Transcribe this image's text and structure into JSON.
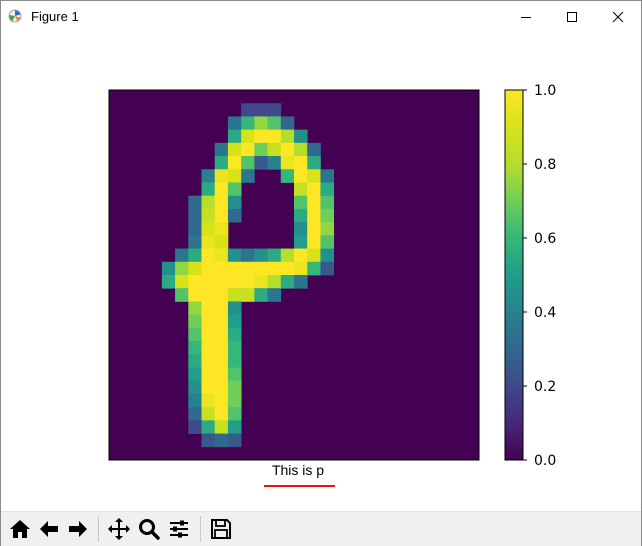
{
  "window": {
    "title": "Figure 1",
    "controls": [
      "minimize-icon",
      "maximize-icon",
      "close-icon"
    ]
  },
  "figure": {
    "caption": "This is p",
    "caption_underline_color": "#ee1111",
    "colormap": "viridis",
    "colorbar_ticks": [
      "0.0",
      "0.2",
      "0.4",
      "0.6",
      "0.8",
      "1.0"
    ],
    "colorbar_range": [
      0.0,
      1.0
    ]
  },
  "toolbar": {
    "buttons": [
      {
        "name": "home-icon"
      },
      {
        "name": "back-icon"
      },
      {
        "name": "forward-icon"
      },
      {
        "name": "pan-icon"
      },
      {
        "name": "zoom-icon"
      },
      {
        "name": "configure-subplots-icon"
      },
      {
        "name": "save-icon"
      }
    ]
  },
  "chart_data": {
    "type": "heatmap",
    "rows": 28,
    "cols": 28,
    "value_range": [
      0,
      1
    ],
    "sparse_cells": [
      [
        1,
        10,
        0.2
      ],
      [
        1,
        11,
        0.2
      ],
      [
        1,
        12,
        0.2
      ],
      [
        2,
        9,
        0.35
      ],
      [
        2,
        10,
        0.6
      ],
      [
        2,
        11,
        0.75
      ],
      [
        2,
        12,
        0.65
      ],
      [
        2,
        13,
        0.3
      ],
      [
        3,
        9,
        0.55
      ],
      [
        3,
        10,
        0.9
      ],
      [
        3,
        11,
        1
      ],
      [
        3,
        12,
        1
      ],
      [
        3,
        13,
        0.8
      ],
      [
        3,
        14,
        0.45
      ],
      [
        4,
        8,
        0.35
      ],
      [
        4,
        9,
        0.9
      ],
      [
        4,
        10,
        1
      ],
      [
        4,
        11,
        0.7
      ],
      [
        4,
        12,
        0.85
      ],
      [
        4,
        13,
        1
      ],
      [
        4,
        14,
        0.8
      ],
      [
        4,
        15,
        0.3
      ],
      [
        5,
        8,
        0.55
      ],
      [
        5,
        9,
        1
      ],
      [
        5,
        10,
        0.65
      ],
      [
        5,
        11,
        0.25
      ],
      [
        5,
        12,
        0.4
      ],
      [
        5,
        13,
        0.95
      ],
      [
        5,
        14,
        1
      ],
      [
        5,
        15,
        0.55
      ],
      [
        6,
        7,
        0.4
      ],
      [
        6,
        8,
        0.95
      ],
      [
        6,
        9,
        0.9
      ],
      [
        6,
        10,
        0.35
      ],
      [
        6,
        13,
        0.6
      ],
      [
        6,
        14,
        1
      ],
      [
        6,
        15,
        0.9
      ],
      [
        6,
        16,
        0.35
      ],
      [
        7,
        7,
        0.55
      ],
      [
        7,
        8,
        1
      ],
      [
        7,
        9,
        0.65
      ],
      [
        7,
        14,
        0.85
      ],
      [
        7,
        15,
        1
      ],
      [
        7,
        16,
        0.55
      ],
      [
        8,
        6,
        0.3
      ],
      [
        8,
        7,
        0.8
      ],
      [
        8,
        8,
        1
      ],
      [
        8,
        9,
        0.45
      ],
      [
        8,
        14,
        0.65
      ],
      [
        8,
        15,
        1
      ],
      [
        8,
        16,
        0.65
      ],
      [
        9,
        6,
        0.3
      ],
      [
        9,
        7,
        0.85
      ],
      [
        9,
        8,
        1
      ],
      [
        9,
        9,
        0.3
      ],
      [
        9,
        14,
        0.55
      ],
      [
        9,
        15,
        1
      ],
      [
        9,
        16,
        0.7
      ],
      [
        10,
        6,
        0.3
      ],
      [
        10,
        7,
        0.9
      ],
      [
        10,
        8,
        0.95
      ],
      [
        10,
        14,
        0.45
      ],
      [
        10,
        15,
        1
      ],
      [
        10,
        16,
        0.75
      ],
      [
        11,
        6,
        0.35
      ],
      [
        11,
        7,
        0.95
      ],
      [
        11,
        8,
        0.9
      ],
      [
        11,
        14,
        0.5
      ],
      [
        11,
        15,
        1
      ],
      [
        11,
        16,
        0.65
      ],
      [
        12,
        5,
        0.35
      ],
      [
        12,
        6,
        0.55
      ],
      [
        12,
        7,
        1
      ],
      [
        12,
        8,
        0.95
      ],
      [
        12,
        9,
        0.45
      ],
      [
        12,
        10,
        0.35
      ],
      [
        12,
        11,
        0.45
      ],
      [
        12,
        12,
        0.55
      ],
      [
        12,
        13,
        0.8
      ],
      [
        12,
        14,
        1
      ],
      [
        12,
        15,
        0.9
      ],
      [
        12,
        16,
        0.45
      ],
      [
        13,
        4,
        0.45
      ],
      [
        13,
        5,
        0.75
      ],
      [
        13,
        6,
        0.9
      ],
      [
        13,
        7,
        1
      ],
      [
        13,
        8,
        1
      ],
      [
        13,
        9,
        1
      ],
      [
        13,
        10,
        1
      ],
      [
        13,
        11,
        1
      ],
      [
        13,
        12,
        1
      ],
      [
        13,
        13,
        1
      ],
      [
        13,
        14,
        0.95
      ],
      [
        13,
        15,
        0.6
      ],
      [
        13,
        16,
        0.25
      ],
      [
        14,
        4,
        0.55
      ],
      [
        14,
        5,
        0.9
      ],
      [
        14,
        6,
        1
      ],
      [
        14,
        7,
        1
      ],
      [
        14,
        8,
        1
      ],
      [
        14,
        9,
        1
      ],
      [
        14,
        10,
        1
      ],
      [
        14,
        11,
        0.95
      ],
      [
        14,
        12,
        0.8
      ],
      [
        14,
        13,
        0.55
      ],
      [
        14,
        14,
        0.35
      ],
      [
        15,
        5,
        0.65
      ],
      [
        15,
        6,
        1
      ],
      [
        15,
        7,
        1
      ],
      [
        15,
        8,
        1
      ],
      [
        15,
        9,
        0.85
      ],
      [
        15,
        10,
        0.85
      ],
      [
        15,
        11,
        0.55
      ],
      [
        15,
        12,
        0.35
      ],
      [
        16,
        6,
        0.75
      ],
      [
        16,
        7,
        1
      ],
      [
        16,
        8,
        1
      ],
      [
        16,
        9,
        0.45
      ],
      [
        17,
        6,
        0.7
      ],
      [
        17,
        7,
        1
      ],
      [
        17,
        8,
        1
      ],
      [
        17,
        9,
        0.5
      ],
      [
        18,
        6,
        0.65
      ],
      [
        18,
        7,
        1
      ],
      [
        18,
        8,
        1
      ],
      [
        18,
        9,
        0.55
      ],
      [
        19,
        6,
        0.6
      ],
      [
        19,
        7,
        1
      ],
      [
        19,
        8,
        1
      ],
      [
        19,
        9,
        0.6
      ],
      [
        20,
        6,
        0.55
      ],
      [
        20,
        7,
        1
      ],
      [
        20,
        8,
        1
      ],
      [
        20,
        9,
        0.6
      ],
      [
        21,
        6,
        0.5
      ],
      [
        21,
        7,
        1
      ],
      [
        21,
        8,
        1
      ],
      [
        21,
        9,
        0.65
      ],
      [
        22,
        6,
        0.45
      ],
      [
        22,
        7,
        1
      ],
      [
        22,
        8,
        1
      ],
      [
        22,
        9,
        0.7
      ],
      [
        23,
        6,
        0.4
      ],
      [
        23,
        7,
        0.95
      ],
      [
        23,
        8,
        1
      ],
      [
        23,
        9,
        0.7
      ],
      [
        24,
        6,
        0.3
      ],
      [
        24,
        7,
        0.85
      ],
      [
        24,
        8,
        1
      ],
      [
        24,
        9,
        0.65
      ],
      [
        25,
        6,
        0.2
      ],
      [
        25,
        7,
        0.55
      ],
      [
        25,
        8,
        0.85
      ],
      [
        25,
        9,
        0.5
      ],
      [
        26,
        7,
        0.25
      ],
      [
        26,
        8,
        0.3
      ],
      [
        26,
        9,
        0.25
      ]
    ]
  }
}
